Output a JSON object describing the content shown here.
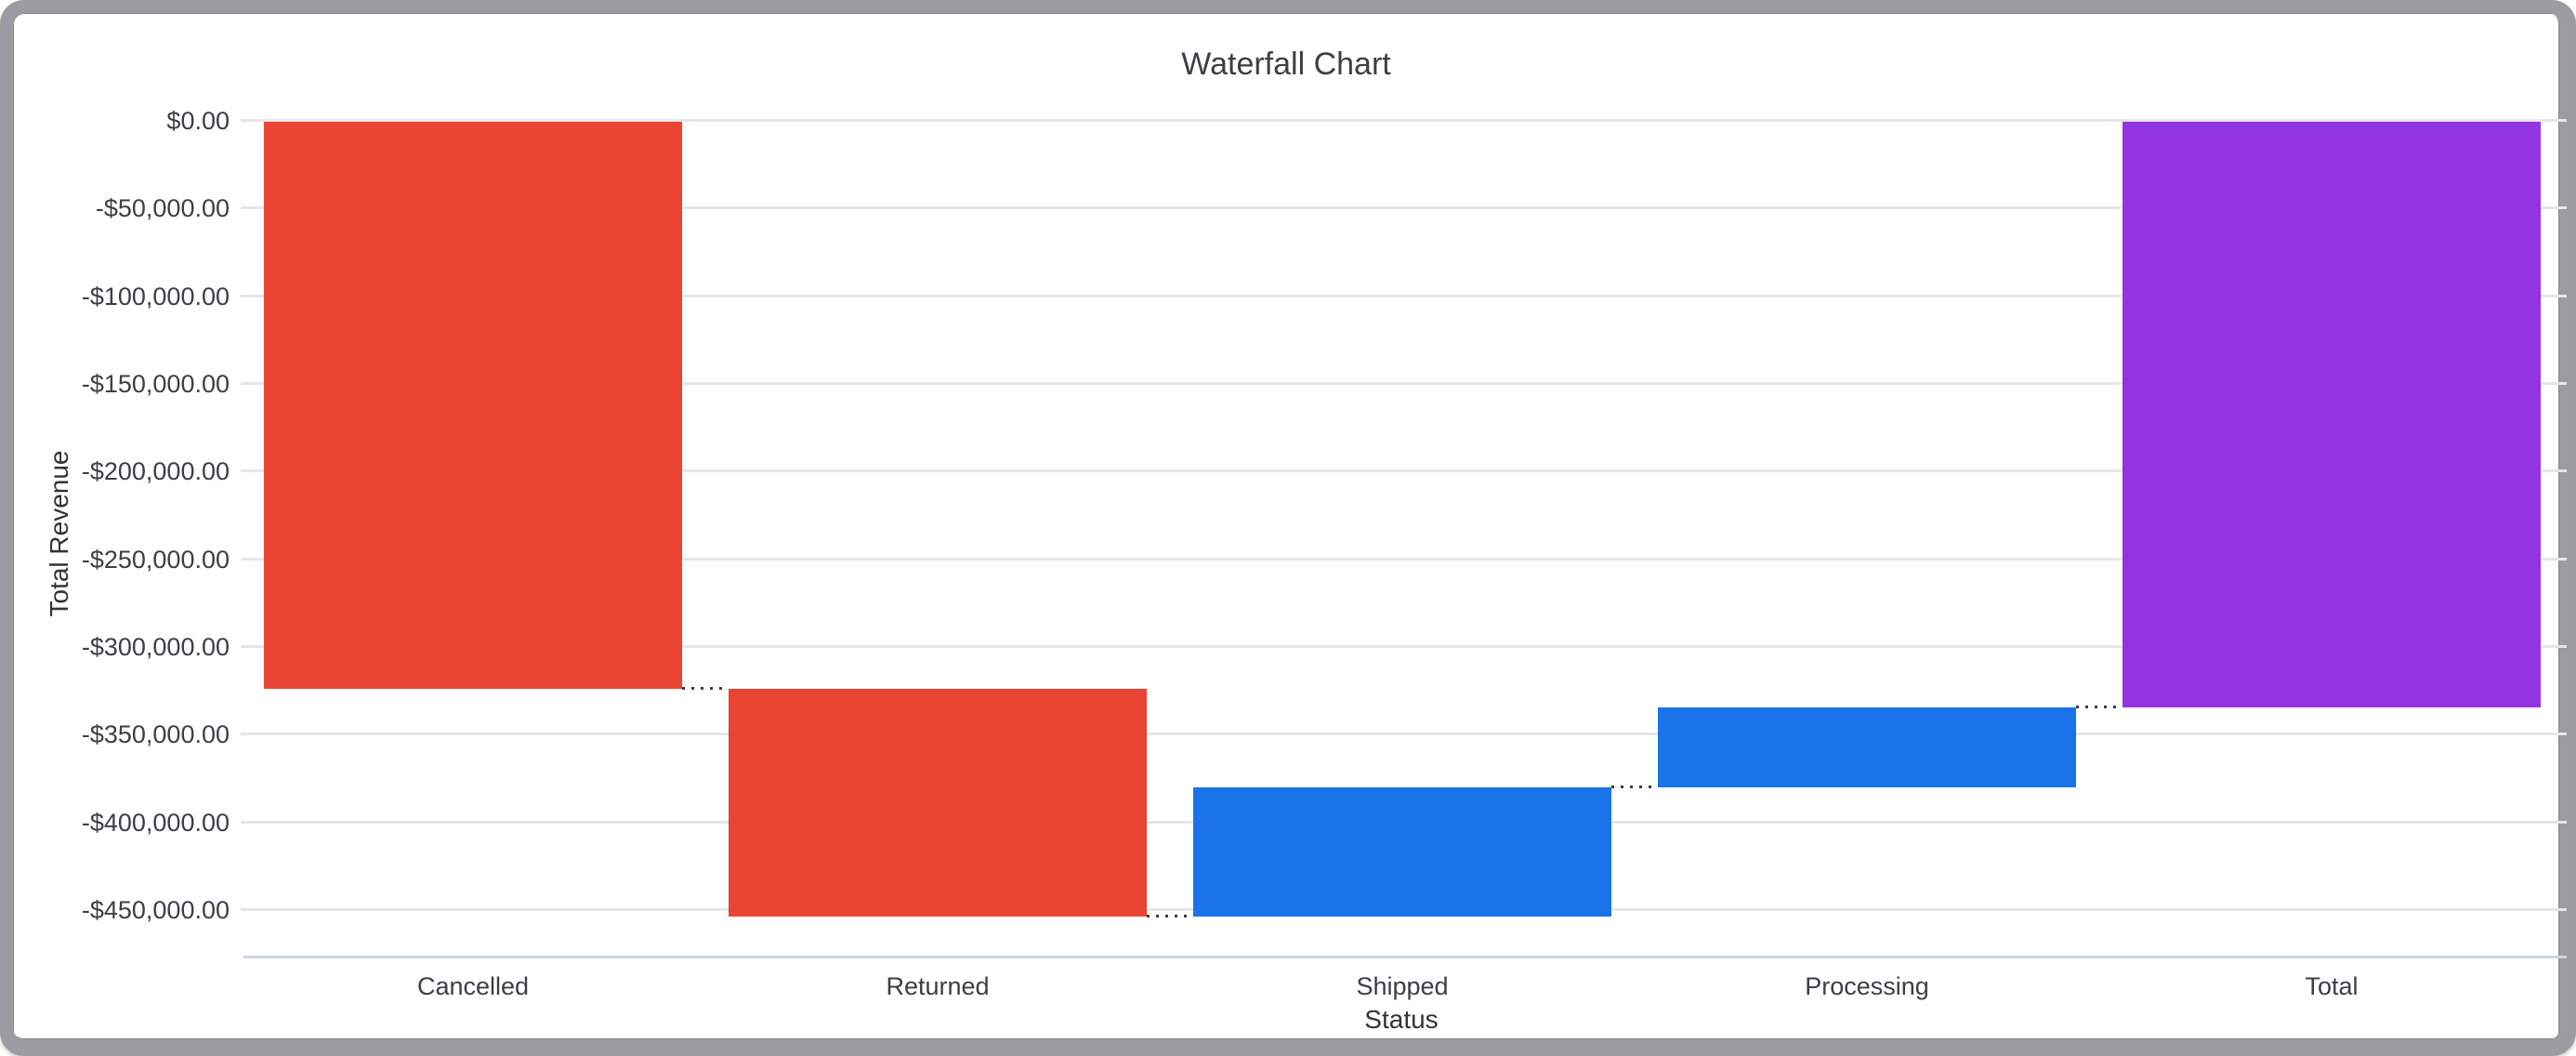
{
  "frame": {
    "border_color": "#9b9ba1",
    "background": "#ffffff"
  },
  "chart_data": {
    "type": "bar",
    "subtype": "waterfall",
    "title": "Waterfall Chart",
    "xlabel": "Status",
    "ylabel": "Total Revenue",
    "legend": "none",
    "grid": true,
    "categories": [
      "Cancelled",
      "Returned",
      "Shipped",
      "Processing",
      "Total"
    ],
    "series": [
      {
        "name": "Cancelled",
        "start": 0,
        "end": -323800,
        "delta": -323800,
        "role": "decrease",
        "color": "#ea4435"
      },
      {
        "name": "Returned",
        "start": -323800,
        "end": -453700,
        "delta": -129900,
        "role": "decrease",
        "color": "#ea4435"
      },
      {
        "name": "Shipped",
        "start": -453700,
        "end": -380000,
        "delta": 73700,
        "role": "increase",
        "color": "#1a73e8"
      },
      {
        "name": "Processing",
        "start": -380000,
        "end": -334400,
        "delta": 45600,
        "role": "increase",
        "color": "#1a73e8"
      },
      {
        "name": "Total",
        "start": 0,
        "end": -334400,
        "delta": -334400,
        "role": "total",
        "color": "#9334e3"
      }
    ],
    "y_ticks": [
      {
        "label": "$0.00",
        "value": 0
      },
      {
        "label": "-$50,000.00",
        "value": -50000
      },
      {
        "label": "-$100,000.00",
        "value": -100000
      },
      {
        "label": "-$150,000.00",
        "value": -150000
      },
      {
        "label": "-$200,000.00",
        "value": -200000
      },
      {
        "label": "-$250,000.00",
        "value": -250000
      },
      {
        "label": "-$300,000.00",
        "value": -300000
      },
      {
        "label": "-$350,000.00",
        "value": -350000
      },
      {
        "label": "-$400,000.00",
        "value": -400000
      },
      {
        "label": "-$450,000.00",
        "value": -450000
      }
    ],
    "ylim": [
      0,
      -477000
    ],
    "colors": {
      "title_text": "#3c4043",
      "tick_text": "#3b4045",
      "axis_title_text": "#333333",
      "grid_line": "#e6e6e6",
      "axis_line": "#ccd3e2",
      "connector": "#3c3c3c"
    }
  }
}
